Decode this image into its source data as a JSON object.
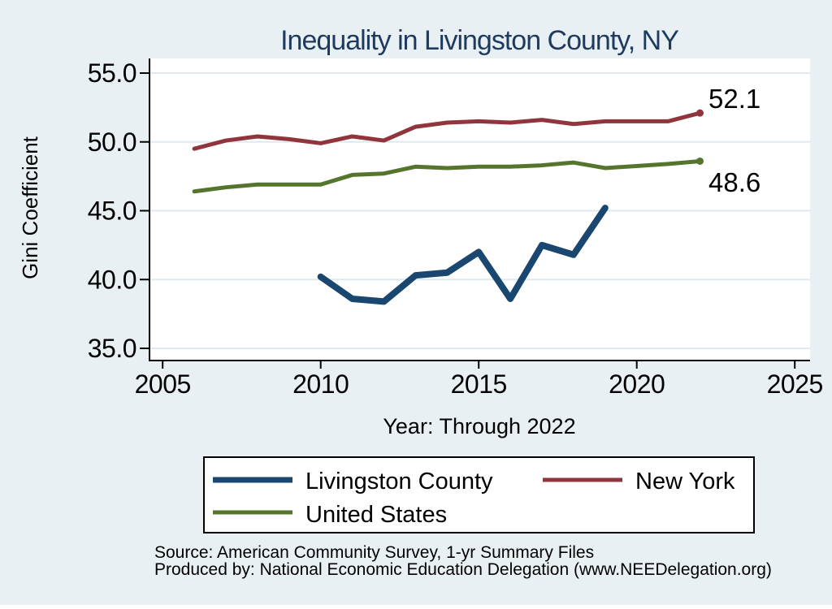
{
  "page": {
    "background_color": "#e9f0f3",
    "plot_background_color": "#ffffff",
    "gridline_color": "#dfeaf0",
    "title_color": "#1f3a5f"
  },
  "chart": {
    "source_line1": "Source: American Community Survey, 1-yr Summary Files",
    "source_line2": "Produced by: National Economic Education Delegation (www.NEEDelegation.org)"
  },
  "chart_data": {
    "type": "line",
    "title": "Inequality in Livingston County, NY",
    "xlabel": "Year: Through 2022",
    "ylabel": "Gini Coefficient",
    "xlim": [
      2005,
      2025
    ],
    "ylim": [
      35.0,
      55.0
    ],
    "xticks": [
      2005,
      2010,
      2015,
      2020,
      2025
    ],
    "yticks": [
      55.0,
      50.0,
      45.0,
      40.0,
      35.0
    ],
    "ytick_format": "one_decimal",
    "grid": "horizontal-only",
    "legend_position": "bottom",
    "series": [
      {
        "name": "Livingston County",
        "color": "#1a476f",
        "line_width": 8,
        "marker_last": false,
        "end_label": "",
        "x": [
          2010,
          2011,
          2012,
          2013,
          2014,
          2015,
          2016,
          2017,
          2018,
          2019
        ],
        "values": [
          40.2,
          38.6,
          38.4,
          40.3,
          40.5,
          42.0,
          38.6,
          42.5,
          41.8,
          45.2
        ]
      },
      {
        "name": "New York",
        "color": "#90353b",
        "line_width": 5,
        "marker_last": true,
        "end_label": "52.1",
        "x": [
          2006,
          2007,
          2008,
          2009,
          2010,
          2011,
          2012,
          2013,
          2014,
          2015,
          2016,
          2017,
          2018,
          2019,
          2021,
          2022
        ],
        "values": [
          49.5,
          50.1,
          50.4,
          50.2,
          49.9,
          50.4,
          50.1,
          51.1,
          51.4,
          51.5,
          51.4,
          51.6,
          51.3,
          51.5,
          51.5,
          52.1
        ]
      },
      {
        "name": "United States",
        "color": "#55752f",
        "line_width": 5,
        "marker_last": true,
        "end_label": "48.6",
        "x": [
          2006,
          2007,
          2008,
          2009,
          2010,
          2011,
          2012,
          2013,
          2014,
          2015,
          2016,
          2017,
          2018,
          2019,
          2021,
          2022
        ],
        "values": [
          46.4,
          46.7,
          46.9,
          46.9,
          46.9,
          47.6,
          47.7,
          48.2,
          48.1,
          48.2,
          48.2,
          48.3,
          48.5,
          48.1,
          48.4,
          48.6
        ]
      }
    ]
  }
}
